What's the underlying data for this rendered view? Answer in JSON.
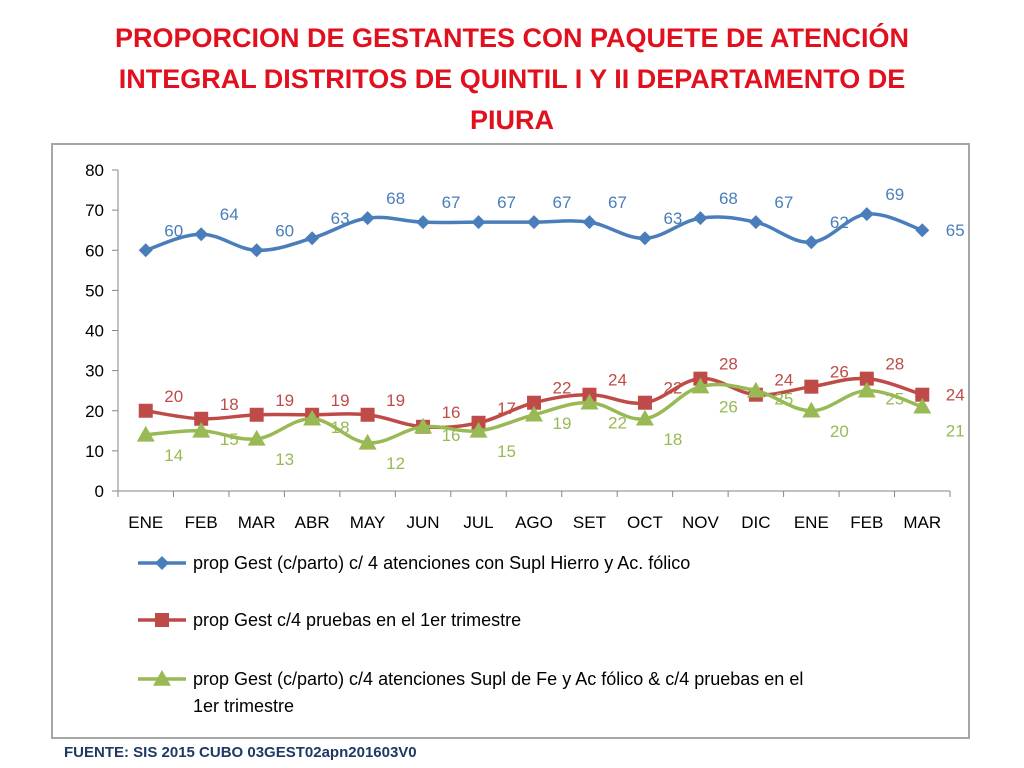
{
  "title": {
    "line1": "PROPORCION DE GESTANTES CON PAQUETE DE ATENCIÓN",
    "line2": "INTEGRAL  DISTRITOS DE QUINTIL I Y II DEPARTAMENTO DE",
    "line3": "PIURA"
  },
  "source": "FUENTE: SIS 2015 CUBO 03GEST02apn201603V0",
  "colors": {
    "title": "#e0101e",
    "series1": "#4a7ebb",
    "series2": "#be4b48",
    "series3": "#98b954"
  },
  "chart_data": {
    "type": "line",
    "title": "PROPORCION DE GESTANTES CON PAQUETE DE ATENCIÓN INTEGRAL  DISTRITOS DE QUINTIL I Y II DEPARTAMENTO DE PIURA",
    "categories": [
      "ENE",
      "FEB",
      "MAR",
      "ABR",
      "MAY",
      "JUN",
      "JUL",
      "AGO",
      "SET",
      "OCT",
      "NOV",
      "DIC",
      "ENE",
      "FEB",
      "MAR"
    ],
    "ylim": [
      0,
      80
    ],
    "yticks": [
      "0",
      "10",
      "20",
      "30",
      "40",
      "50",
      "60",
      "70",
      "80"
    ],
    "grid": false,
    "legend_position": "bottom",
    "series": [
      {
        "name": "prop Gest (c/parto) c/ 4 atenciones con Supl Hierro y Ac. fólico",
        "marker": "diamond",
        "values": [
          60,
          64,
          60,
          63,
          68,
          67,
          67,
          67,
          67,
          63,
          68,
          67,
          62,
          69,
          65
        ],
        "labels": [
          "60",
          "64",
          "60",
          "63",
          "68",
          "67",
          "67",
          "67",
          "67",
          "63",
          "68",
          "67",
          "62",
          "69",
          "65"
        ]
      },
      {
        "name": "prop Gest c/4 pruebas en el 1er trimestre",
        "marker": "square",
        "values": [
          20,
          18,
          19,
          19,
          19,
          16,
          17,
          22,
          24,
          22,
          28,
          24,
          26,
          28,
          24
        ],
        "labels": [
          "20",
          "18",
          "19",
          "19",
          "19",
          "16",
          "17",
          "22",
          "24",
          "22",
          "28",
          "24",
          "26",
          "28",
          "24"
        ]
      },
      {
        "name": "prop Gest (c/parto) c/4 atenciones Supl de Fe y Ac fólico & c/4 pruebas en el 1er trimestre",
        "legend_lines": [
          "prop Gest (c/parto) c/4 atenciones Supl de Fe y Ac fólico & c/4 pruebas en el",
          "1er trimestre"
        ],
        "marker": "triangle",
        "values": [
          14,
          15,
          13,
          18,
          12,
          16,
          15,
          19,
          22,
          18,
          26,
          25,
          20,
          25,
          21
        ],
        "labels": [
          "14",
          "15",
          "13",
          "18",
          "12",
          "16",
          "15",
          "19",
          "22",
          "18",
          "26",
          "25",
          "20",
          "25",
          "21"
        ]
      }
    ]
  }
}
